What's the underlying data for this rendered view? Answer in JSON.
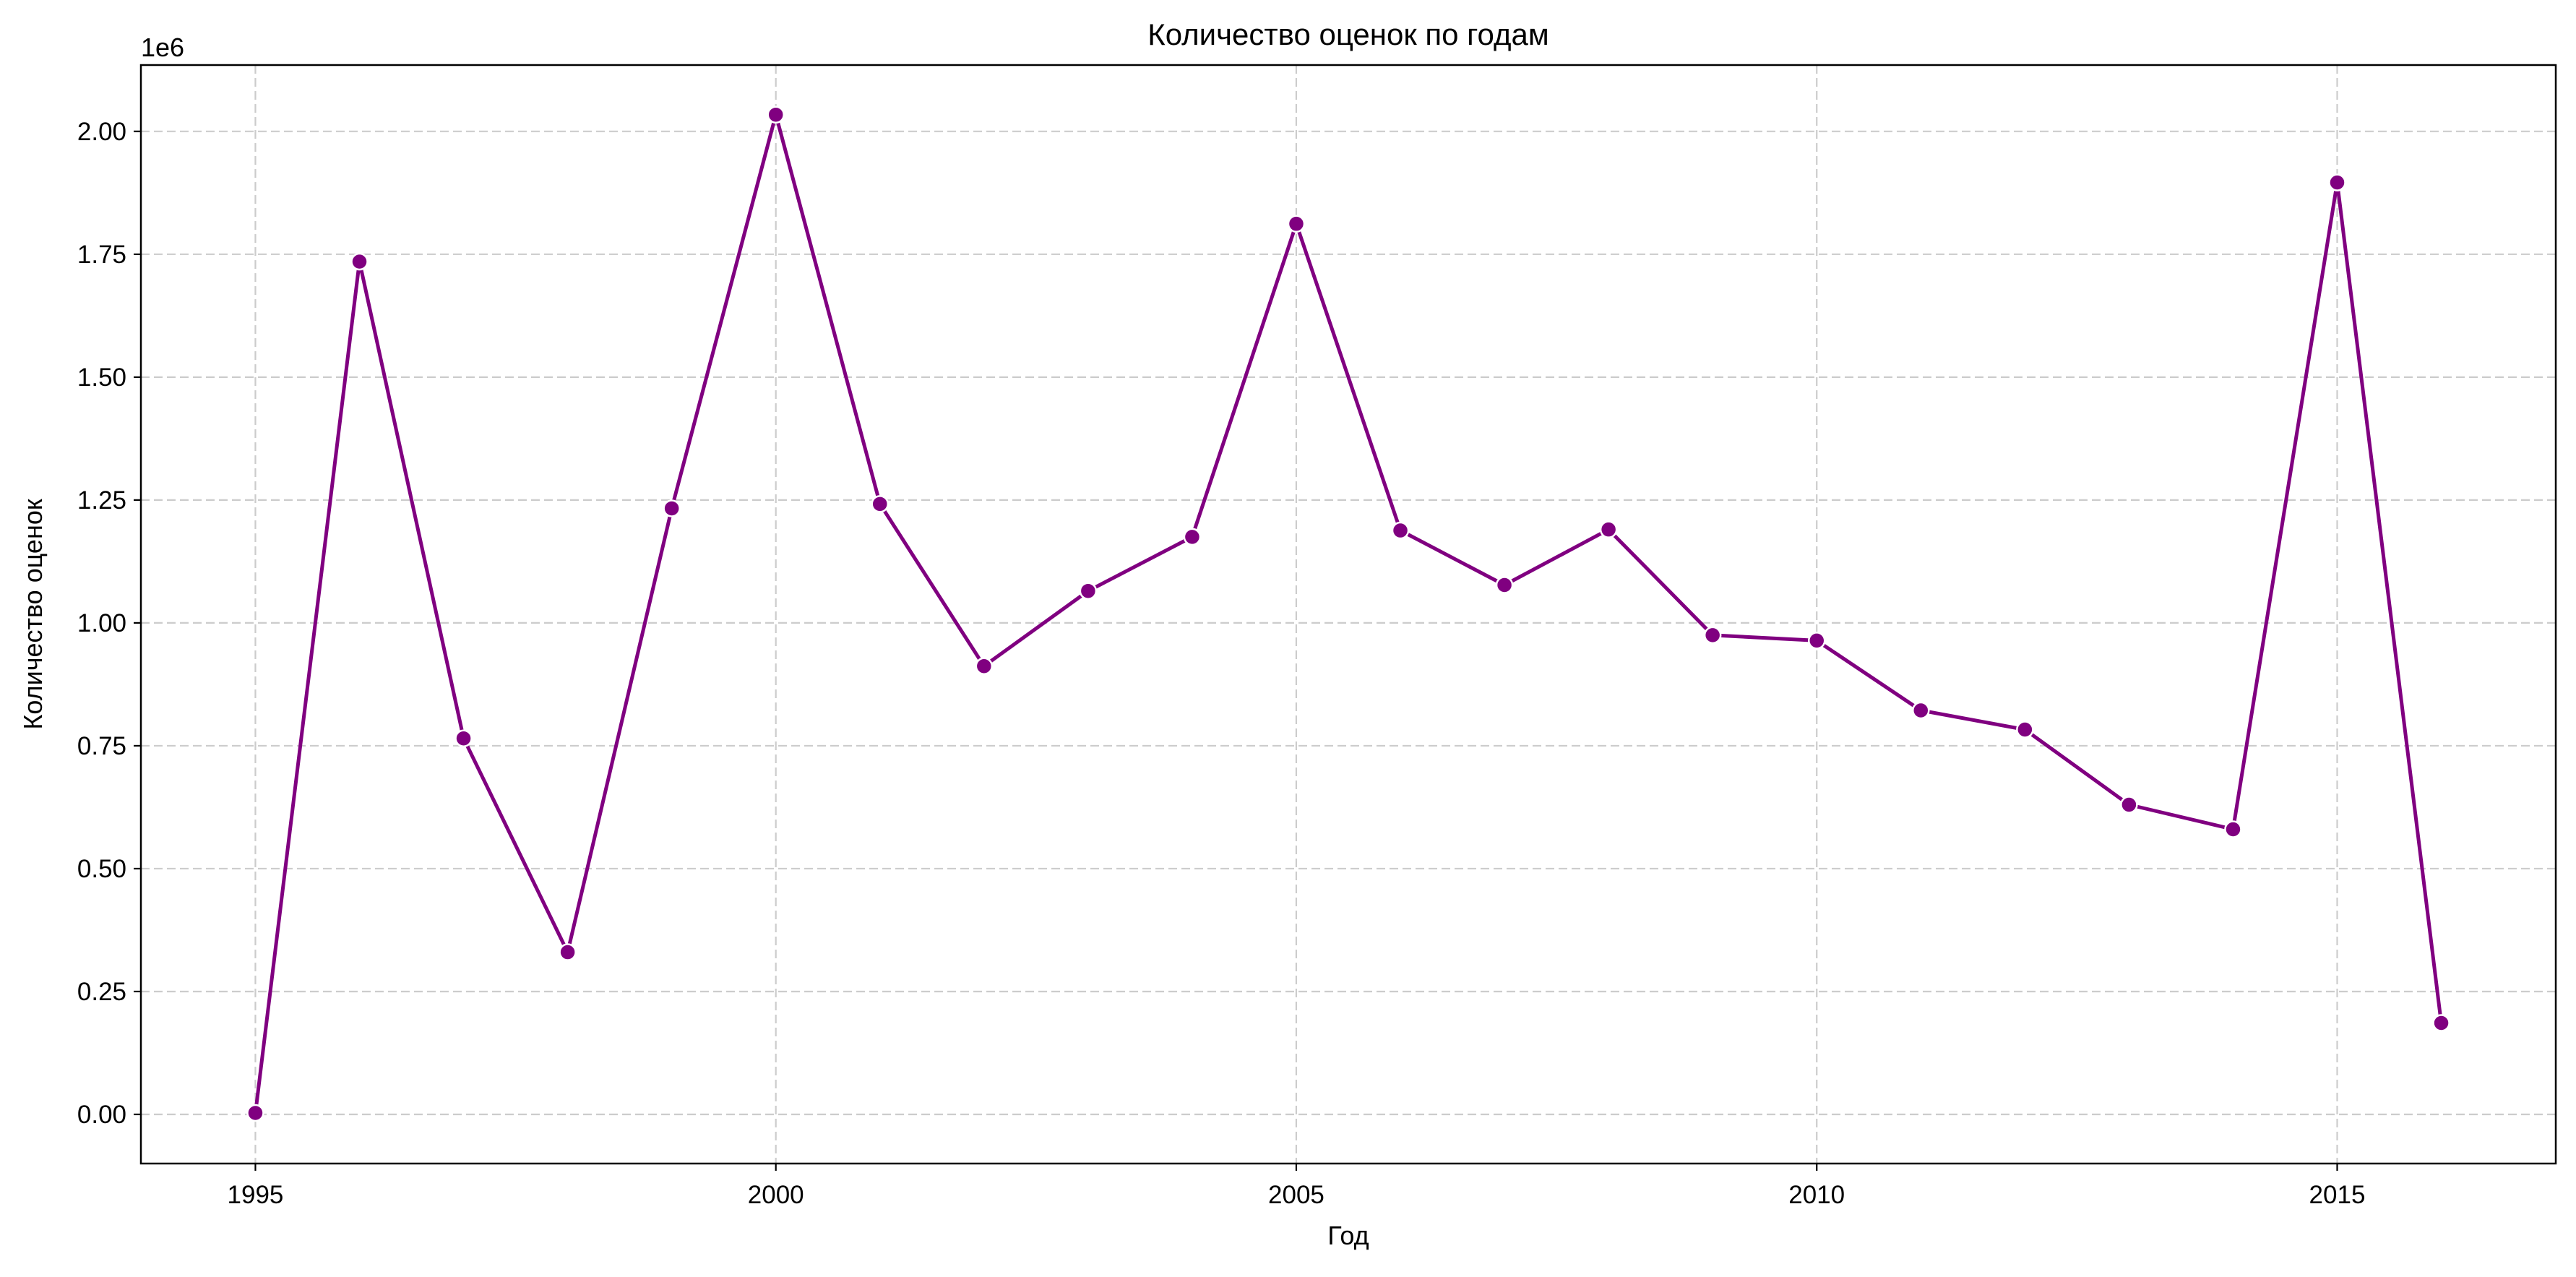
{
  "chart_data": {
    "type": "line",
    "title": "Количество оценок по годам",
    "xlabel": "Год",
    "ylabel": "Количество оценок",
    "y_offset_label": "1e6",
    "xlim": [
      1993.9,
      2017.1
    ],
    "ylim": [
      -100000,
      2135000
    ],
    "x_ticks": [
      1995,
      2000,
      2005,
      2010,
      2015
    ],
    "y_ticks": [
      0,
      250000,
      500000,
      750000,
      1000000,
      1250000,
      1500000,
      1750000,
      2000000
    ],
    "y_tick_labels": [
      "0.00",
      "0.25",
      "0.50",
      "0.75",
      "1.00",
      "1.25",
      "1.50",
      "1.75",
      "2.00"
    ],
    "grid": true,
    "line_color": "#800080",
    "marker_edge_color": "#ffffff",
    "series": [
      {
        "x": [
          1995,
          1996,
          1997,
          1998,
          1999,
          2000,
          2001,
          2002,
          2003,
          2004,
          2005,
          2006,
          2007,
          2008,
          2009,
          2010,
          2011,
          2012,
          2013,
          2014,
          2015,
          2016
        ],
        "values": [
          3000,
          1735000,
          765000,
          330000,
          1233000,
          2034000,
          1242000,
          912000,
          1065000,
          1175000,
          1812000,
          1188000,
          1077000,
          1190000,
          975000,
          964000,
          822000,
          783000,
          630000,
          580000,
          1896000,
          186000
        ]
      }
    ]
  }
}
